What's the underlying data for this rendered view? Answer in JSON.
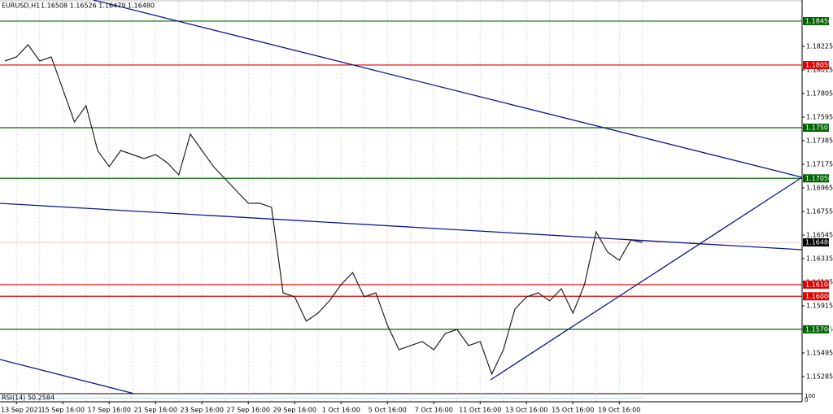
{
  "chart_data": {
    "type": "line",
    "title": "EURUSD,H1",
    "ohlc_label": "1.16508 1.16526 1.16479 1.16480",
    "indicator": {
      "label": "RSI(14) 50.2584",
      "scale_top": "100",
      "scale_bottom": "0"
    },
    "categories": [
      null,
      "13 Sep 2021",
      null,
      null,
      null,
      "15 Sep 16:00",
      null,
      null,
      null,
      "17 Sep 16:00",
      null,
      null,
      null,
      "21 Sep 16:00",
      null,
      null,
      null,
      "23 Sep 16:00",
      null,
      null,
      null,
      "27 Sep 16:00",
      null,
      null,
      null,
      "29 Sep 16:00",
      null,
      null,
      null,
      "1 Oct 16:00",
      null,
      null,
      null,
      "5 Oct 16:00",
      null,
      null,
      null,
      "7 Oct 16:00",
      null,
      null,
      null,
      "11 Oct 16:00",
      null,
      null,
      null,
      "13 Oct 16:00",
      null,
      null,
      null,
      "15 Oct 16:00",
      null,
      null,
      null,
      "19 Oct 16:00",
      null,
      null
    ],
    "values": [
      1.18095,
      1.18131,
      1.1824,
      1.18095,
      1.18131,
      1.17842,
      1.17552,
      1.17697,
      1.17298,
      1.17154,
      1.17298,
      1.17262,
      1.17226,
      1.17262,
      1.1719,
      1.17081,
      1.17443,
      1.17298,
      1.17154,
      1.17045,
      1.16936,
      1.16828,
      1.16828,
      1.16792,
      1.16031,
      1.15995,
      1.15778,
      1.1585,
      1.15959,
      1.16104,
      1.16212,
      1.15995,
      1.16031,
      1.15742,
      1.15524,
      1.15561,
      1.15597,
      1.15524,
      1.15669,
      1.15705,
      1.15561,
      1.15597,
      1.15307,
      1.15524,
      1.15886,
      1.15995,
      1.16031,
      1.15959,
      1.16067,
      1.1585,
      1.16104,
      1.16574,
      1.16393,
      1.16321,
      1.16502,
      1.1648
    ],
    "color": "#222222",
    "ylim": [
      1.15133,
      1.18638
    ],
    "yticks": [
      1.18225,
      1.18015,
      1.17805,
      1.17595,
      1.17385,
      1.17175,
      1.16965,
      1.16755,
      1.16545,
      1.16335,
      1.16125,
      1.15915,
      1.15705,
      1.15495,
      1.15285
    ],
    "levels": [
      {
        "value": 1.1845,
        "label": "1.18450",
        "color": "#006400"
      },
      {
        "value": 1.18059,
        "label": "1.18059",
        "color": "#e00000"
      },
      {
        "value": 1.17501,
        "label": "1.17501",
        "color": "#006400"
      },
      {
        "value": 1.1705,
        "label": "1.17050",
        "color": "#006400"
      },
      {
        "value": 1.1648,
        "label": "1.16480",
        "color": "#000000"
      },
      {
        "value": 1.16104,
        "label": "1.16104",
        "color": "#e00000"
      },
      {
        "value": 1.16,
        "label": "1.16000",
        "color": "#e00000"
      },
      {
        "value": 1.15706,
        "label": "1.15706",
        "color": "#006400"
      }
    ]
  }
}
